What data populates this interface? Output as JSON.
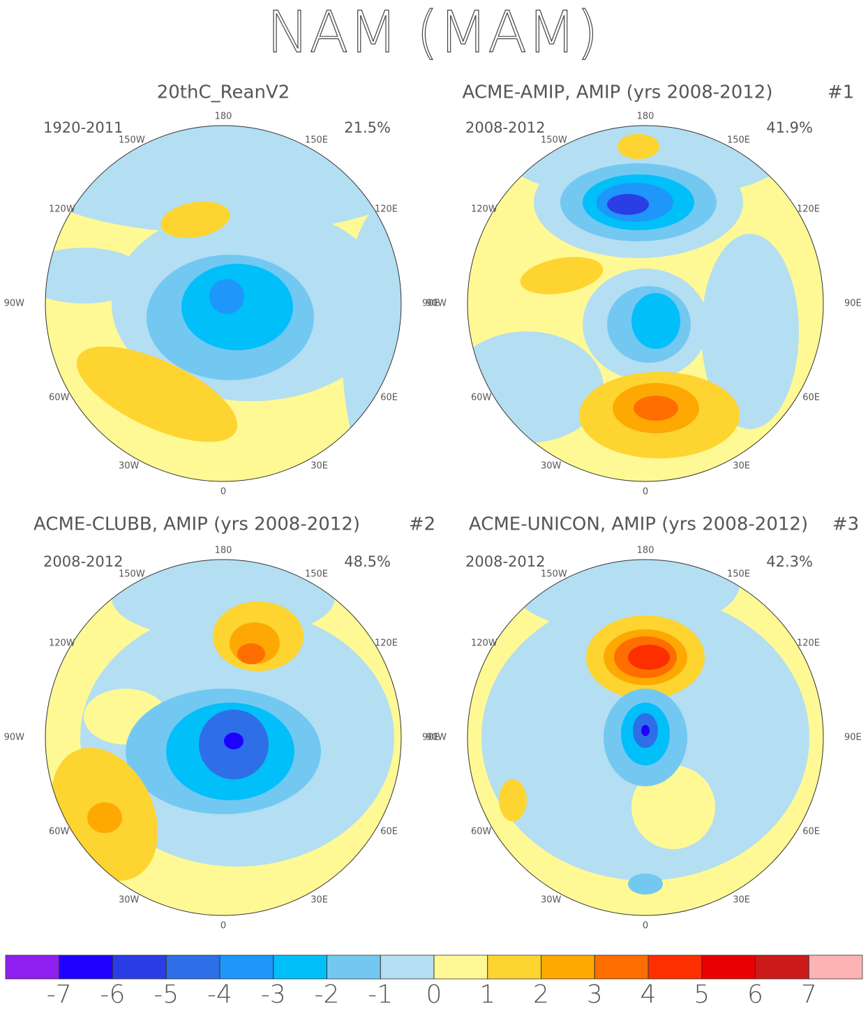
{
  "title": "NAM (MAM)",
  "panels": [
    {
      "title": "20thC_ReanV2",
      "period": "1920-2011",
      "variance": "21.5%"
    },
    {
      "title": "ACME-AMIP, AMIP (yrs 2008-2012)",
      "tag": "#1",
      "period": "2008-2012",
      "variance": "41.9%"
    },
    {
      "title": "ACME-CLUBB, AMIP (yrs 2008-2012)",
      "tag": "#2",
      "period": "2008-2012",
      "variance": "48.5%"
    },
    {
      "title": "ACME-UNICON, AMIP (yrs 2008-2012)",
      "tag": "#3",
      "period": "2008-2012",
      "variance": "42.3%"
    }
  ],
  "lon_labels": [
    "180",
    "150E",
    "120E",
    "90E",
    "60E",
    "30E",
    "0",
    "30W",
    "60W",
    "90W",
    "120W",
    "150W"
  ],
  "colorbar": {
    "colors": [
      "#8f20ef",
      "#1e00ff",
      "#2b3ee6",
      "#2e6fe8",
      "#1e96fa",
      "#00bff9",
      "#73c8f2",
      "#b4def2",
      "#fef995",
      "#fdd430",
      "#fea804",
      "#fe6e00",
      "#fd2e00",
      "#e80000",
      "#cc1a1a",
      "#fcb3b3"
    ],
    "ticks": [
      -7,
      -6,
      -5,
      -4,
      -3,
      -2,
      -1,
      0,
      1,
      2,
      3,
      4,
      5,
      6,
      7
    ]
  }
}
